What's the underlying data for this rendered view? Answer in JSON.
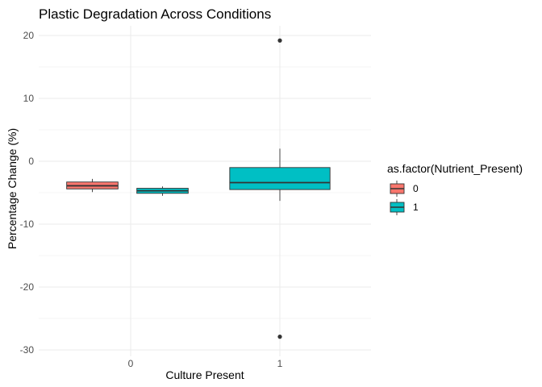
{
  "chart_data": {
    "type": "boxplot",
    "title": "Plastic Degradation Across Conditions",
    "xlabel": "Culture Present",
    "ylabel": "Percentage Change (%)",
    "categories": [
      "0",
      "1"
    ],
    "ylim": [
      -32.5,
      22
    ],
    "yticks": [
      -30,
      -20,
      -10,
      0,
      10,
      20
    ],
    "legend": {
      "title": "as.factor(Nutrient_Present)",
      "position": "right",
      "entries": [
        {
          "label": "0",
          "color": "#F8766D"
        },
        {
          "label": "1",
          "color": "#00BFC4"
        }
      ]
    },
    "boxes": [
      {
        "category": "0",
        "group": "0",
        "min": -4.9,
        "q1": -4.4,
        "median": -3.9,
        "q3": -3.3,
        "max": -2.8,
        "outliers": []
      },
      {
        "category": "0",
        "group": "1",
        "min": -5.5,
        "q1": -5.1,
        "median": -4.7,
        "q3": -4.3,
        "max": -4.0,
        "outliers": []
      },
      {
        "category": "1",
        "group": "1",
        "min": -6.3,
        "q1": -4.5,
        "median": -3.4,
        "q3": -1.0,
        "max": 2.0,
        "outliers": [
          19.2,
          -27.9
        ]
      }
    ],
    "grid": true
  }
}
